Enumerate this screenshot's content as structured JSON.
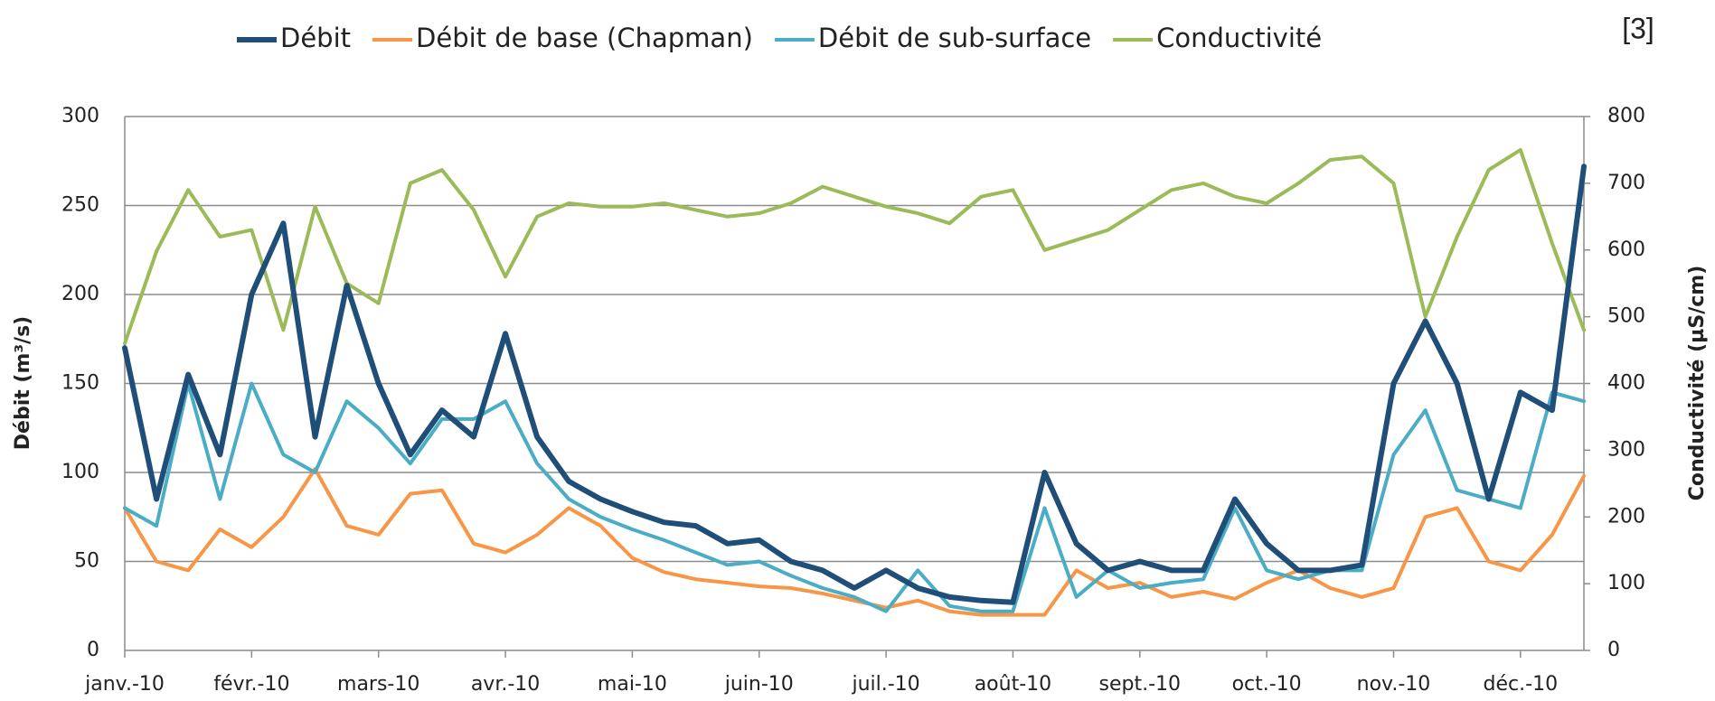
{
  "chart_data": {
    "type": "line",
    "annotation": "[3]",
    "y_label": "Débit (m³/s)",
    "y2_label": "Conductivité (µS/cm)",
    "legend": "top",
    "grid": true,
    "categories": [
      "janv.-10",
      null,
      null,
      null,
      "févr.-10",
      null,
      null,
      null,
      "mars-10",
      null,
      null,
      null,
      "avr.-10",
      null,
      null,
      null,
      "mai-10",
      null,
      null,
      null,
      "juin-10",
      null,
      null,
      null,
      "juil.-10",
      null,
      null,
      null,
      "août-10",
      null,
      null,
      null,
      "sept.-10",
      null,
      null,
      null,
      "oct.-10",
      null,
      null,
      null,
      "nov.-10",
      null,
      null,
      null,
      "déc.-10",
      null,
      null
    ],
    "ylim": [
      0,
      300
    ],
    "yticks": [
      0,
      50,
      100,
      150,
      200,
      250,
      300
    ],
    "y2lim": [
      0,
      800
    ],
    "y2ticks": [
      0,
      100,
      200,
      300,
      400,
      500,
      600,
      700,
      800
    ],
    "series": [
      {
        "name": "Débit",
        "color": "#1f4e79",
        "values": [
          170,
          85,
          155,
          110,
          200,
          240,
          120,
          205,
          150,
          110,
          135,
          120,
          178,
          120,
          95,
          85,
          78,
          72,
          70,
          60,
          62,
          50,
          45,
          35,
          45,
          35,
          30,
          28,
          27,
          100,
          60,
          45,
          50,
          45,
          45,
          85,
          60,
          45,
          45,
          48,
          150,
          185,
          150,
          85,
          145,
          135,
          272
        ]
      },
      {
        "name": "Débit de base (Chapman)",
        "color": "#f79646",
        "values": [
          80,
          50,
          45,
          68,
          58,
          75,
          102,
          70,
          65,
          88,
          90,
          60,
          55,
          65,
          80,
          70,
          52,
          44,
          40,
          38,
          36,
          35,
          32,
          28,
          24,
          28,
          22,
          20,
          20,
          20,
          45,
          35,
          38,
          30,
          33,
          29,
          38,
          45,
          35,
          30,
          35,
          75,
          80,
          50,
          45,
          65,
          98
        ]
      },
      {
        "name": "Débit de sub-surface",
        "color": "#4bacc6",
        "values": [
          80,
          70,
          150,
          85,
          150,
          110,
          100,
          140,
          125,
          105,
          130,
          130,
          140,
          105,
          85,
          75,
          68,
          62,
          55,
          48,
          50,
          42,
          35,
          30,
          22,
          45,
          25,
          22,
          22,
          80,
          30,
          45,
          35,
          38,
          40,
          80,
          45,
          40,
          45,
          45,
          110,
          135,
          90,
          85,
          80,
          145,
          140
        ]
      },
      {
        "name": "Conductivité",
        "color": "#9bbb59",
        "axis": "y2",
        "values": [
          460,
          598,
          690,
          620,
          630,
          480,
          665,
          550,
          520,
          700,
          720,
          660,
          560,
          650,
          670,
          665,
          665,
          670,
          660,
          650,
          655,
          670,
          695,
          680,
          665,
          655,
          640,
          680,
          690,
          600,
          615,
          630,
          660,
          690,
          700,
          680,
          670,
          700,
          735,
          740,
          700,
          500,
          620,
          720,
          750,
          610,
          480
        ]
      }
    ]
  }
}
